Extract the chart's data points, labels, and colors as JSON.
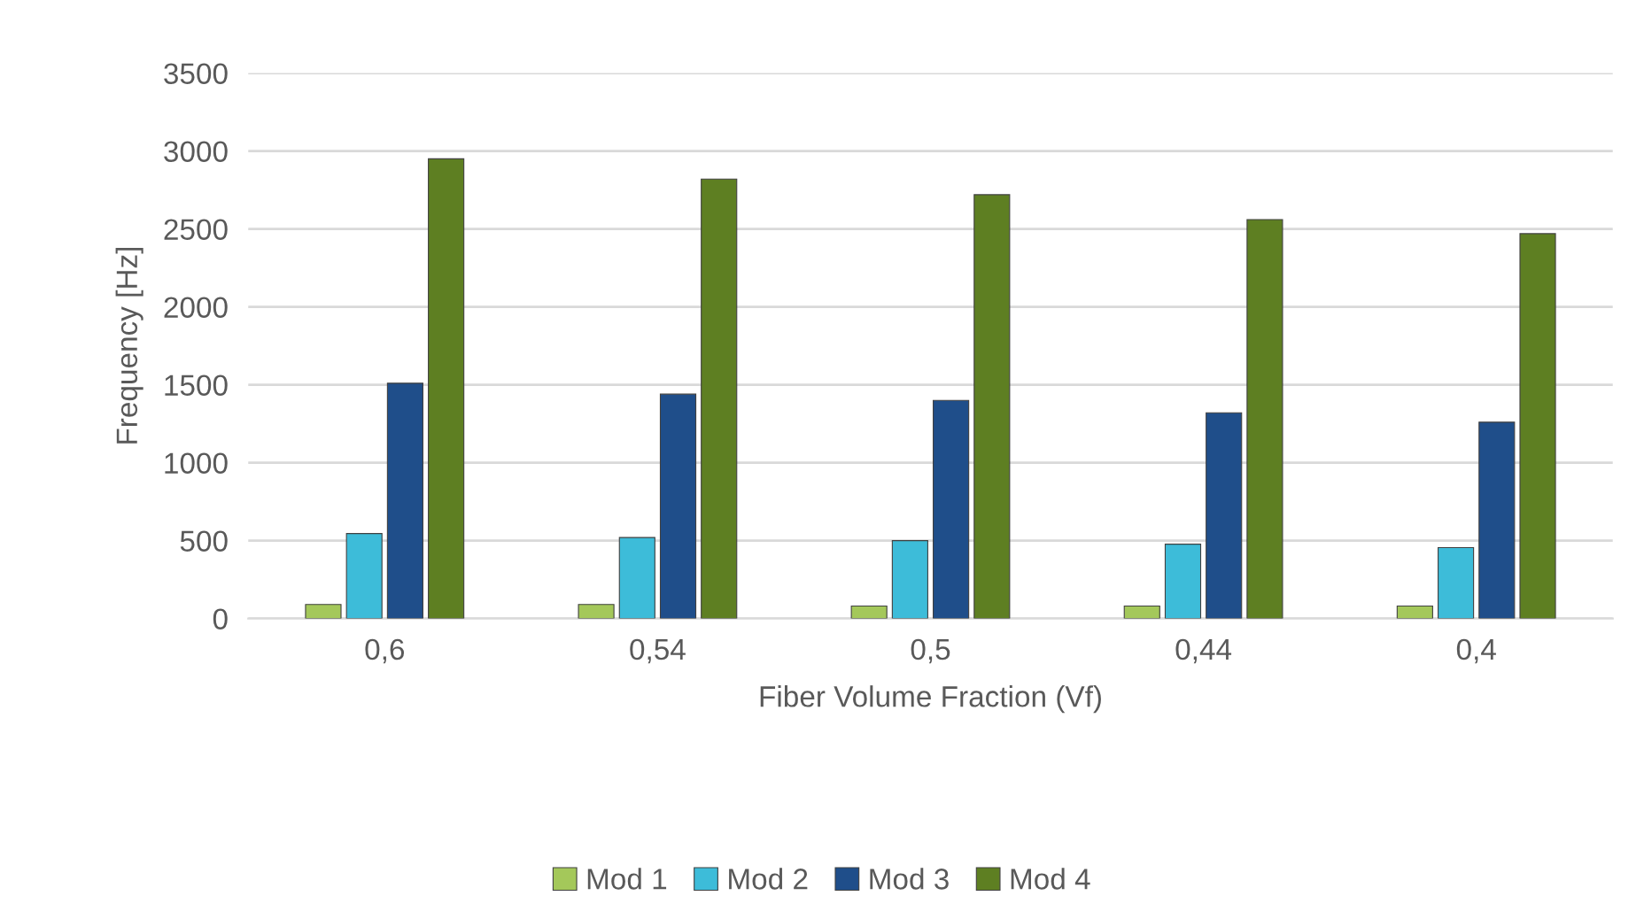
{
  "chart_data": {
    "type": "bar",
    "xlabel": "Fiber Volume Fraction (Vf)",
    "ylabel": "Frequency [Hz]",
    "categories": [
      "0,6",
      "0,54",
      "0,5",
      "0,44",
      "0,4"
    ],
    "series": [
      {
        "name": "Mod 1",
        "color": "#a4c85a",
        "values": [
          90,
          90,
          80,
          80,
          80
        ]
      },
      {
        "name": "Mod 2",
        "color": "#3dbcd9",
        "values": [
          545,
          520,
          500,
          477,
          455
        ]
      },
      {
        "name": "Mod 3",
        "color": "#1f4e8a",
        "values": [
          1510,
          1440,
          1400,
          1320,
          1260
        ]
      },
      {
        "name": "Mod 4",
        "color": "#5e7f22",
        "values": [
          2950,
          2820,
          2720,
          2560,
          2470
        ]
      }
    ],
    "ylim": [
      0,
      3500
    ],
    "yticks": [
      0,
      500,
      1000,
      1500,
      2000,
      2500,
      3000,
      3500
    ],
    "grid": "y",
    "legend": "bottom"
  }
}
